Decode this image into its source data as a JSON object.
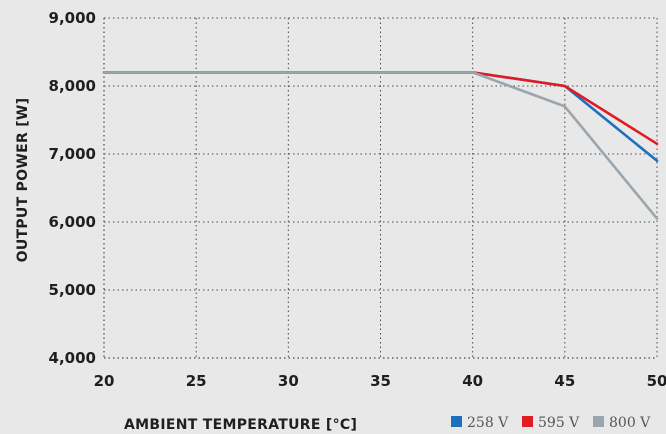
{
  "chart_data": {
    "type": "line",
    "title": "",
    "xlabel": "AMBIENT TEMPERATURE [°C]",
    "ylabel": "OUTPUT POWER [W]",
    "xlim": [
      20,
      50
    ],
    "ylim": [
      4000,
      9000
    ],
    "x_ticks": [
      20,
      25,
      30,
      35,
      40,
      45,
      50
    ],
    "y_ticks": [
      4000,
      5000,
      6000,
      7000,
      8000,
      9000
    ],
    "y_tick_labels": [
      "4,000",
      "5,000",
      "6,000",
      "7,000",
      "8,000",
      "9,000"
    ],
    "x_tick_labels": [
      "20",
      "25",
      "30",
      "35",
      "40",
      "45",
      "50"
    ],
    "grid": true,
    "legend_position": "bottom-right",
    "series": [
      {
        "name": "258 V",
        "color": "#1f6fbf",
        "x": [
          20,
          40,
          45,
          50
        ],
        "y": [
          8200,
          8200,
          8000,
          6900
        ]
      },
      {
        "name": "595 V",
        "color": "#e11b22",
        "x": [
          20,
          40,
          45,
          50
        ],
        "y": [
          8200,
          8200,
          8000,
          7150
        ]
      },
      {
        "name": "800 V",
        "color": "#9aa6ad",
        "x": [
          20,
          40,
          45,
          50
        ],
        "y": [
          8200,
          8200,
          7700,
          6050
        ]
      }
    ]
  }
}
